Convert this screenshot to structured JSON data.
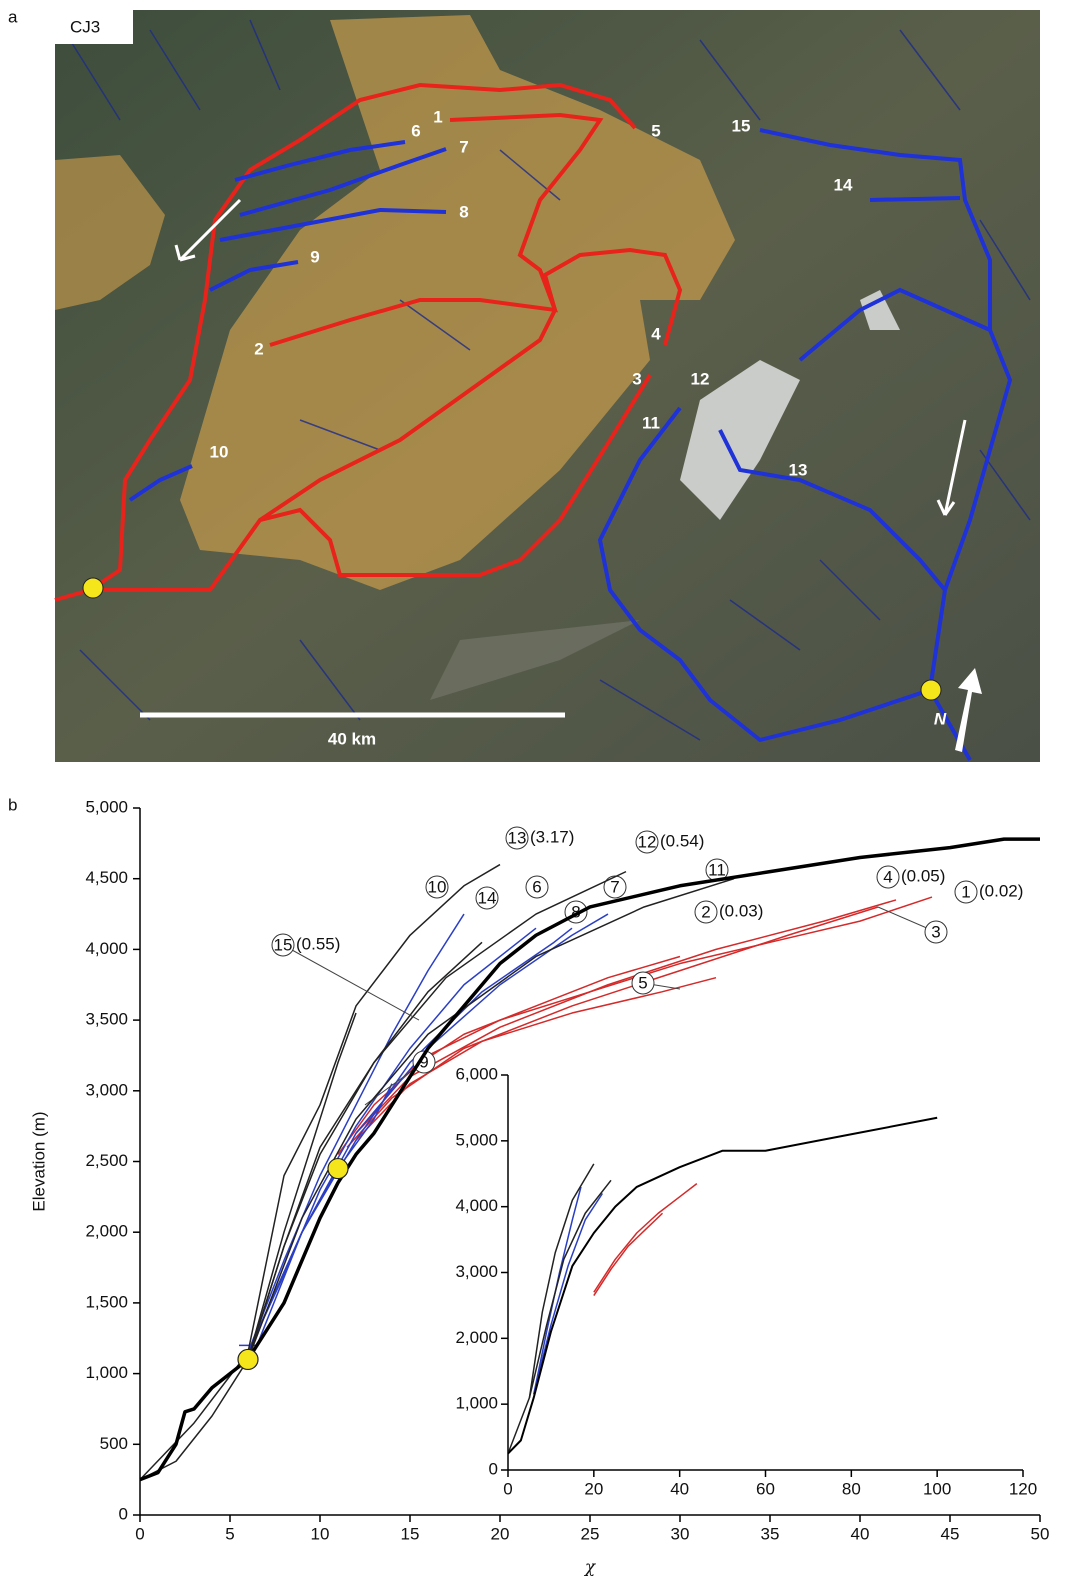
{
  "map": {
    "panel": "a",
    "title": "CJ3",
    "labels": [
      "1",
      "2",
      "3",
      "4",
      "5",
      "6",
      "7",
      "8",
      "9",
      "10",
      "11",
      "12",
      "13",
      "14",
      "15"
    ],
    "scale_bar": "40 km",
    "north": "N"
  },
  "chart_data": [
    {
      "type": "line",
      "panel": "b",
      "ylabel": "Elevation (m)",
      "xlabel": "χ",
      "xlim": [
        0,
        50
      ],
      "xticks": [
        0,
        5,
        10,
        15,
        20,
        25,
        30,
        35,
        40,
        45,
        50
      ],
      "ylim": [
        0,
        5000
      ],
      "yticks": [
        0,
        500,
        {
          "value": 1000,
          "label": "1,000"
        },
        {
          "value": 1500,
          "label": "1,500"
        },
        {
          "value": 2000,
          "label": "2,000"
        },
        {
          "value": 2500,
          "label": "2,500"
        },
        {
          "value": 3000,
          "label": "3,000"
        },
        {
          "value": 3500,
          "label": "3,500"
        },
        {
          "value": 4000,
          "label": "4,000"
        },
        {
          "value": 4500,
          "label": "4,500"
        },
        {
          "value": 5000,
          "label": "5,000"
        }
      ],
      "series": [
        {
          "name": "1",
          "note": "(0.02)",
          "color": "#d42a2a",
          "x": [
            11,
            13,
            16,
            20,
            25,
            30,
            35,
            40,
            44
          ],
          "values": [
            2550,
            2900,
            3250,
            3500,
            3700,
            3900,
            4050,
            4200,
            4370
          ]
        },
        {
          "name": "2",
          "note": "(0.03)",
          "color": "#d42a2a",
          "x": [
            12,
            15,
            18,
            22,
            26,
            30
          ],
          "values": [
            2700,
            3150,
            3400,
            3600,
            3800,
            3950
          ]
        },
        {
          "name": "3",
          "color": "#d42a2a",
          "x": [
            11.5,
            14,
            18,
            24,
            30,
            36,
            41
          ],
          "values": [
            2600,
            2950,
            3300,
            3600,
            3850,
            4100,
            4300
          ]
        },
        {
          "name": "4",
          "note": "(0.05)",
          "color": "#d42a2a",
          "x": [
            12,
            15,
            20,
            26,
            32,
            38,
            42
          ],
          "values": [
            2700,
            3100,
            3450,
            3750,
            4000,
            4200,
            4350
          ]
        },
        {
          "name": "5",
          "color": "#d42a2a",
          "x": [
            12,
            15,
            19,
            24,
            29,
            32
          ],
          "values": [
            2650,
            3050,
            3350,
            3550,
            3700,
            3800
          ]
        },
        {
          "name": "6",
          "color": "#2b3fc4",
          "x": [
            6,
            8,
            10,
            12,
            15,
            18,
            22
          ],
          "values": [
            1150,
            1700,
            2300,
            2750,
            3300,
            3750,
            4150
          ]
        },
        {
          "name": "7",
          "color": "#2b3fc4",
          "x": [
            6,
            9,
            12,
            16,
            20,
            24,
            26
          ],
          "values": [
            1150,
            2000,
            2700,
            3300,
            3750,
            4100,
            4250
          ]
        },
        {
          "name": "8",
          "color": "#2b3fc4",
          "x": [
            6,
            9,
            12,
            15,
            19,
            23,
            24
          ],
          "values": [
            1150,
            2000,
            2650,
            3200,
            3700,
            4050,
            4150
          ]
        },
        {
          "name": "9",
          "color": "#2b3fc4",
          "x": [
            5.5,
            6.5,
            9,
            11,
            13,
            14
          ],
          "values": [
            1200,
            1200,
            2000,
            2450,
            2800,
            3050
          ]
        },
        {
          "name": "10",
          "color": "#2b3fc4",
          "x": [
            6,
            8,
            10,
            12,
            14,
            16,
            18
          ],
          "values": [
            1150,
            1800,
            2400,
            2900,
            3400,
            3850,
            4250
          ]
        },
        {
          "name": "11",
          "color": "#222222",
          "x": [
            6,
            9,
            12,
            16,
            22,
            28,
            33
          ],
          "values": [
            1100,
            2100,
            2800,
            3400,
            3950,
            4300,
            4500
          ]
        },
        {
          "name": "12",
          "note": "(0.54)",
          "color": "#222222",
          "x": [
            6,
            8,
            10,
            13,
            17,
            22,
            27
          ],
          "values": [
            1100,
            1900,
            2550,
            3200,
            3800,
            4250,
            4550
          ]
        },
        {
          "name": "13",
          "note": "(3.17)",
          "color": "#222222",
          "x": [
            0,
            3,
            6,
            8,
            10,
            12,
            15,
            18,
            20
          ],
          "values": [
            250,
            650,
            1150,
            2400,
            2900,
            3600,
            4100,
            4450,
            4600
          ]
        },
        {
          "name": "14",
          "color": "#222222",
          "x": [
            6,
            8,
            10,
            13,
            16,
            19
          ],
          "values": [
            1100,
            1900,
            2600,
            3200,
            3700,
            4050
          ]
        },
        {
          "name": "15",
          "note": "(0.55)",
          "color": "#222222",
          "x": [
            0,
            2,
            4,
            6,
            8,
            10,
            11,
            12
          ],
          "values": [
            250,
            380,
            700,
            1100,
            2000,
            2800,
            3200,
            3550
          ]
        },
        {
          "color": "#000000",
          "width": 3.5,
          "x": [
            0,
            1,
            2,
            2.5,
            3,
            4,
            5,
            6,
            7,
            8,
            9,
            10,
            11,
            12,
            13,
            14,
            16,
            18,
            20,
            22,
            25,
            30,
            35,
            40,
            45,
            48,
            50
          ],
          "values": [
            250,
            300,
            500,
            730,
            750,
            900,
            1000,
            1100,
            1300,
            1500,
            1800,
            2100,
            2350,
            2550,
            2700,
            2900,
            3300,
            3600,
            3900,
            4100,
            4300,
            4450,
            4550,
            4650,
            4720,
            4780,
            4780
          ]
        }
      ],
      "markers": {
        "color": "#f5e61b",
        "x": [
          6,
          11
        ],
        "values": [
          1100,
          2450
        ]
      }
    },
    {
      "type": "line",
      "xlim": [
        0,
        120
      ],
      "xticks": [
        0,
        20,
        40,
        60,
        80,
        100,
        120
      ],
      "ylim": [
        0,
        6000
      ],
      "yticks": [
        0,
        {
          "value": 1000,
          "label": "1,000"
        },
        {
          "value": 2000,
          "label": "2,000"
        },
        {
          "value": 3000,
          "label": "3,000"
        },
        {
          "value": 4000,
          "label": "4,000"
        },
        {
          "value": 5000,
          "label": "5,000"
        },
        {
          "value": 6000,
          "label": "6,000"
        }
      ],
      "series": [
        {
          "color": "#d42a2a",
          "x": [
            20,
            25,
            30,
            35,
            40,
            44
          ],
          "values": [
            2700,
            3200,
            3600,
            3900,
            4150,
            4350
          ]
        },
        {
          "color": "#d42a2a",
          "x": [
            20,
            24,
            28,
            32,
            36
          ],
          "values": [
            2650,
            3050,
            3400,
            3650,
            3900
          ]
        },
        {
          "color": "#2b3fc4",
          "x": [
            6,
            9,
            12,
            15,
            17
          ],
          "values": [
            1150,
            2100,
            3000,
            3800,
            4300
          ]
        },
        {
          "color": "#2b3fc4",
          "x": [
            6,
            10,
            14,
            18,
            22
          ],
          "values": [
            1150,
            2200,
            3100,
            3800,
            4200
          ]
        },
        {
          "color": "#222222",
          "x": [
            0,
            5,
            8,
            11,
            15,
            20
          ],
          "values": [
            250,
            1100,
            2400,
            3300,
            4100,
            4650
          ]
        },
        {
          "color": "#222222",
          "x": [
            5,
            9,
            13,
            18,
            24
          ],
          "values": [
            1100,
            2200,
            3200,
            3900,
            4400
          ]
        },
        {
          "color": "#000000",
          "width": 2,
          "x": [
            0,
            3,
            6,
            10,
            15,
            20,
            25,
            30,
            40,
            50,
            60,
            80,
            100
          ],
          "values": [
            250,
            450,
            1100,
            2100,
            3100,
            3600,
            4000,
            4300,
            4600,
            4850,
            4850,
            5100,
            5350
          ]
        }
      ]
    }
  ]
}
